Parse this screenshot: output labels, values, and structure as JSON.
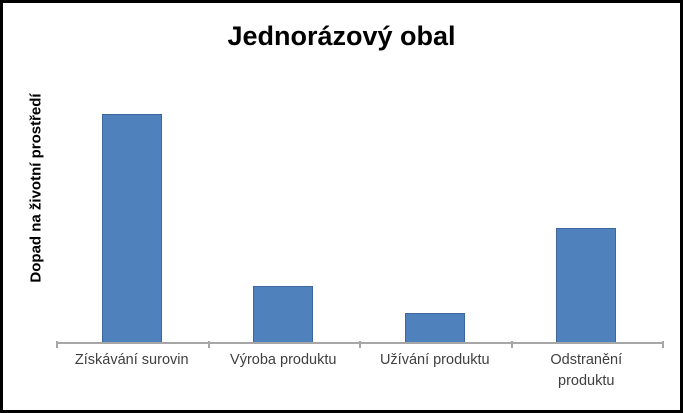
{
  "chart": {
    "title": "Jednorázový obal",
    "y_axis_title": "Dopad na životní prostředí",
    "x_labels": [
      "Získávání surovin",
      "Výroba produktu",
      "Užívání produktu",
      "Odstranění\nproduktu"
    ]
  },
  "chart_data": {
    "type": "bar",
    "title": "Jednorázový obal",
    "xlabel": "",
    "ylabel": "Dopad na životní prostředí",
    "categories": [
      "Získávání surovin",
      "Výroba produktu",
      "Užívání produktu",
      "Odstranění produktu"
    ],
    "values": [
      100,
      25,
      13,
      50
    ],
    "series_count": 1,
    "y_axis_tick_labels_visible": false,
    "ylim": [
      0,
      120
    ],
    "grid": false,
    "legend": false,
    "colors": {
      "bar_fill": "#4F81BD",
      "bar_border": "#3E679E",
      "axis_line": "#A6A6A6",
      "category_label_text": "#3F3F3F",
      "title_text": "#000000",
      "background": "#FFFFFF",
      "frame_border": "#000000"
    }
  }
}
